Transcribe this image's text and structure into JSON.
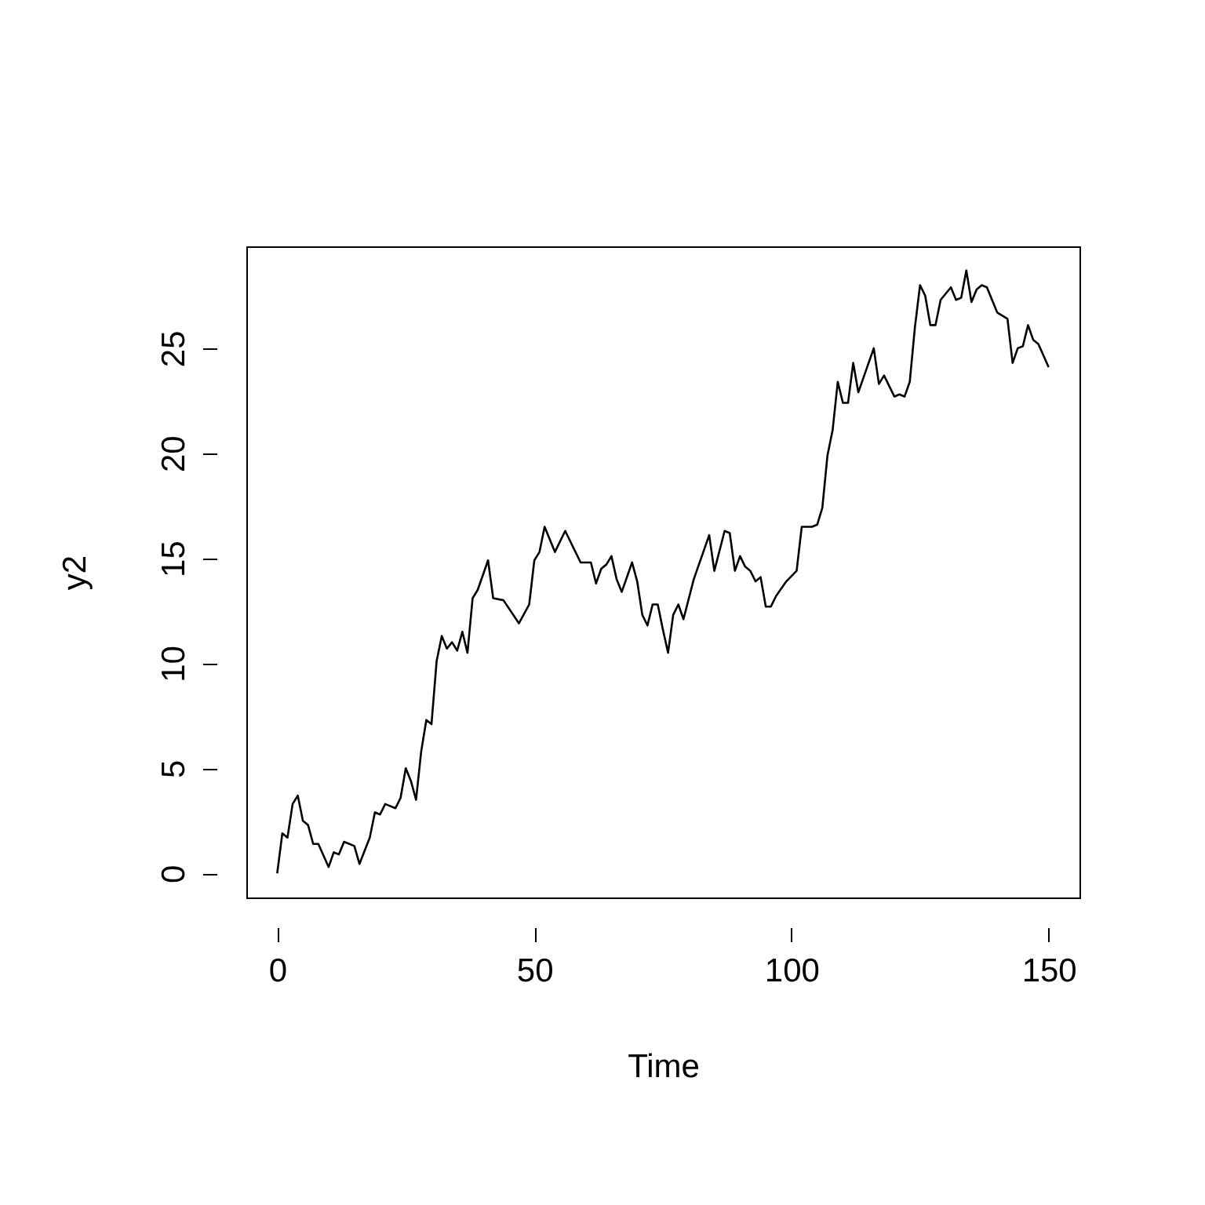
{
  "chart_data": {
    "type": "line",
    "xlabel": "Time",
    "ylabel": "y2",
    "xlim": [
      -6,
      156
    ],
    "ylim": [
      -1.15,
      29.85
    ],
    "xticks": [
      0,
      50,
      100,
      150
    ],
    "yticks": [
      0,
      5,
      10,
      15,
      20,
      25
    ],
    "grid": false,
    "legend": false,
    "marker": "none",
    "line_style": "solid",
    "x": [
      0,
      1,
      2,
      3,
      4,
      5,
      6,
      7,
      8,
      10,
      11,
      12,
      13,
      15,
      16,
      18,
      19,
      20,
      21,
      23,
      24,
      25,
      26,
      27,
      28,
      29,
      30,
      31,
      32,
      33,
      34,
      35,
      36,
      37,
      38,
      39,
      41,
      42,
      44,
      47,
      49,
      50,
      51,
      52,
      54,
      56,
      59,
      61,
      62,
      63,
      64,
      65,
      66,
      67,
      69,
      70,
      71,
      72,
      73,
      74,
      75,
      76,
      77,
      78,
      79,
      81,
      84,
      85,
      87,
      88,
      89,
      90,
      91,
      92,
      93,
      94,
      95,
      96,
      97,
      99,
      101,
      102,
      104,
      105,
      106,
      107,
      108,
      109,
      110,
      111,
      112,
      113,
      114,
      116,
      117,
      118,
      120,
      121,
      122,
      123,
      124,
      125,
      126,
      127,
      128,
      129,
      131,
      132,
      133,
      134,
      135,
      136,
      137,
      138,
      140,
      142,
      143,
      144,
      145,
      146,
      147,
      148,
      150
    ],
    "series": [
      {
        "color": "#000000",
        "values": [
          0,
          1.9,
          1.7,
          3.3,
          3.7,
          2.5,
          2.3,
          1.4,
          1.4,
          0.3,
          1.0,
          0.9,
          1.5,
          1.3,
          0.45,
          1.7,
          2.9,
          2.8,
          3.3,
          3.1,
          3.6,
          5.0,
          4.4,
          3.5,
          5.8,
          7.3,
          7.1,
          10.1,
          11.3,
          10.7,
          11.0,
          10.6,
          11.5,
          10.5,
          13.1,
          13.5,
          14.9,
          13.1,
          13.0,
          11.9,
          12.8,
          14.9,
          15.3,
          16.5,
          15.3,
          16.3,
          14.8,
          14.8,
          13.8,
          14.5,
          14.7,
          15.1,
          14.0,
          13.4,
          14.8,
          13.9,
          12.3,
          11.8,
          12.8,
          12.8,
          11.6,
          10.5,
          12.3,
          12.8,
          12.1,
          14.0,
          16.1,
          14.4,
          16.3,
          16.2,
          14.4,
          15.1,
          14.6,
          14.4,
          13.9,
          14.1,
          12.7,
          12.7,
          13.2,
          13.9,
          14.4,
          16.5,
          16.5,
          16.6,
          17.4,
          19.9,
          21.1,
          23.4,
          22.4,
          22.4,
          24.3,
          22.9,
          23.6,
          25.0,
          23.3,
          23.7,
          22.7,
          22.8,
          22.7,
          23.4,
          26.0,
          28.0,
          27.5,
          26.1,
          26.1,
          27.3,
          27.9,
          27.3,
          27.4,
          28.7,
          27.2,
          27.8,
          28.0,
          27.9,
          26.7,
          26.4,
          24.3,
          25.0,
          25.1,
          26.1,
          25.4,
          25.2,
          24.1
        ]
      }
    ]
  }
}
